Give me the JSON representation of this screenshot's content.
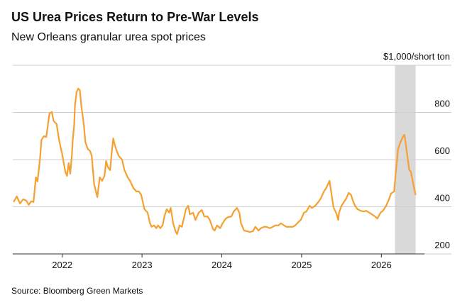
{
  "chart_data": {
    "type": "line",
    "title": "US Urea Prices Return to Pre-War Levels",
    "subtitle": "New Orleans granular urea spot prices",
    "source": "Source: Bloomberg Green Markets",
    "x": [
      2021.39,
      2021.43,
      2021.47,
      2021.51,
      2021.55,
      2021.58,
      2021.61,
      2021.64,
      2021.67,
      2021.69,
      2021.72,
      2021.74,
      2021.77,
      2021.8,
      2021.84,
      2021.87,
      2021.89,
      2021.93,
      2021.96,
      2022.0,
      2022.04,
      2022.06,
      2022.08,
      2022.1,
      2022.12,
      2022.13,
      2022.15,
      2022.16,
      2022.18,
      2022.2,
      2022.22,
      2022.24,
      2022.27,
      2022.29,
      2022.32,
      2022.35,
      2022.37,
      2022.4,
      2022.44,
      2022.47,
      2022.5,
      2022.53,
      2022.55,
      2022.57,
      2022.6,
      2022.62,
      2022.64,
      2022.66,
      2022.69,
      2022.71,
      2022.75,
      2022.78,
      2022.82,
      2022.85,
      2022.89,
      2022.93,
      2022.96,
      2022.99,
      2023.03,
      2023.07,
      2023.1,
      2023.12,
      2023.15,
      2023.18,
      2023.2,
      2023.23,
      2023.26,
      2023.28,
      2023.31,
      2023.34,
      2023.36,
      2023.39,
      2023.42,
      2023.44,
      2023.47,
      2023.5,
      2023.52,
      2023.55,
      2023.58,
      2023.6,
      2023.64,
      2023.67,
      2023.71,
      2023.75,
      2023.78,
      2023.82,
      2023.85,
      2023.89,
      2023.91,
      2023.94,
      2023.98,
      2024.01,
      2024.05,
      2024.08,
      2024.12,
      2024.15,
      2024.19,
      2024.22,
      2024.24,
      2024.28,
      2024.32,
      2024.35,
      2024.39,
      2024.42,
      2024.46,
      2024.49,
      2024.53,
      2024.56,
      2024.6,
      2024.64,
      2024.67,
      2024.71,
      2024.74,
      2024.78,
      2024.81,
      2024.85,
      2024.89,
      2024.92,
      2024.96,
      2024.99,
      2025.03,
      2025.06,
      2025.1,
      2025.13,
      2025.17,
      2025.21,
      2025.24,
      2025.28,
      2025.31,
      2025.35,
      2025.37,
      2025.4,
      2025.44,
      2025.46,
      2025.47,
      2025.5,
      2025.53,
      2025.56,
      2025.59,
      2025.62,
      2025.64,
      2025.67,
      2025.7,
      2025.74,
      2025.78,
      2025.81,
      2025.85,
      2025.88,
      2025.92,
      2025.95,
      2025.99,
      2026.02,
      2026.06,
      2026.1,
      2026.12,
      2026.16,
      2026.19,
      2026.21,
      2026.24,
      2026.27,
      2026.29,
      2026.32,
      2026.35,
      2026.37,
      2026.4,
      2026.42,
      2026.43
    ],
    "series": [
      {
        "color": "#f5a030",
        "values": [
          420,
          444,
          414,
          432,
          426,
          408,
          423,
          420,
          525,
          507,
          600,
          684,
          699,
          696,
          796,
          802,
          765,
          750,
          684,
          621,
          546,
          531,
          585,
          540,
          615,
          675,
          750,
          832,
          886,
          901,
          895,
          826,
          750,
          675,
          645,
          636,
          615,
          495,
          441,
          525,
          510,
          531,
          594,
          570,
          555,
          630,
          690,
          660,
          630,
          615,
          600,
          555,
          525,
          510,
          480,
          465,
          465,
          450,
          390,
          375,
          330,
          315,
          321,
          309,
          321,
          309,
          323,
          359,
          390,
          375,
          395,
          330,
          296,
          284,
          321,
          315,
          344,
          390,
          404,
          368,
          375,
          344,
          375,
          386,
          359,
          359,
          344,
          305,
          299,
          321,
          309,
          330,
          350,
          356,
          359,
          380,
          395,
          375,
          330,
          299,
          296,
          293,
          296,
          315,
          299,
          309,
          315,
          315,
          309,
          315,
          321,
          321,
          330,
          321,
          315,
          315,
          315,
          321,
          335,
          344,
          375,
          380,
          404,
          395,
          404,
          420,
          435,
          465,
          480,
          510,
          465,
          398,
          368,
          344,
          375,
          404,
          420,
          435,
          459,
          450,
          429,
          404,
          390,
          383,
          380,
          383,
          375,
          368,
          359,
          350,
          375,
          383,
          404,
          435,
          456,
          465,
          579,
          645,
          675,
          696,
          705,
          630,
          555,
          549,
          495,
          465,
          450
        ]
      }
    ],
    "xlim": [
      2021.38,
      2026.54
    ],
    "xticks": [
      2022,
      2023,
      2024,
      2025,
      2026
    ],
    "ylim": [
      200,
      1000
    ],
    "yticks": [
      200,
      400,
      600,
      800,
      {
        "value": 1000,
        "label": "$1,000/short ton"
      }
    ],
    "shade": [
      2026.17,
      2026.43
    ],
    "grid": true
  }
}
